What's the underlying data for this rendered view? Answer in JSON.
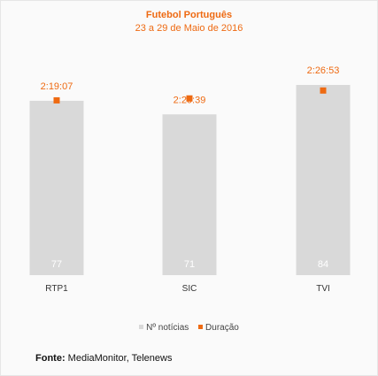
{
  "chart_data": {
    "type": "bar",
    "title": "Futebol Português",
    "subtitle": "23 a 29 de Maio de 2016",
    "categories": [
      "RTP1",
      "SIC",
      "TVI"
    ],
    "series": [
      {
        "name": "Nº notícias",
        "values": [
          77,
          71,
          84
        ],
        "color": "#d9d9d9"
      },
      {
        "name": "Duração",
        "values": [
          "2:19:07",
          "2:20:39",
          "2:26:53"
        ],
        "seconds": [
          8347,
          8439,
          8813
        ],
        "color": "#ee6a12"
      }
    ],
    "legend_position": "bottom"
  },
  "source": {
    "label": "Fonte:",
    "text": "MediaMonitor, Telenews"
  }
}
